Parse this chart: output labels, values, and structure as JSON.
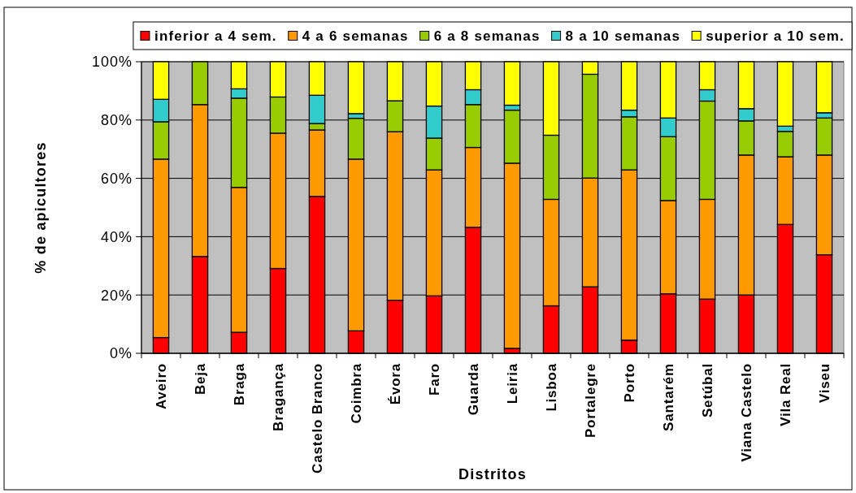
{
  "chart_data": {
    "type": "bar",
    "stacked": true,
    "xlabel": "Distritos",
    "ylabel": "% de apicultores",
    "categories": [
      "Aveiro",
      "Beja",
      "Braga",
      "Bragança",
      "Castelo Branco",
      "Coimbra",
      "Évora",
      "Faro",
      "Guarda",
      "Leiria",
      "Lisboa",
      "Portalegre",
      "Porto",
      "Santarém",
      "Setúbal",
      "Viana Castelo",
      "Vila Real",
      "Viseu"
    ],
    "series": [
      {
        "name": "inferior a 4 sem.",
        "color": "#ff0000",
        "values": [
          5.4,
          33.2,
          7.2,
          29.1,
          53.8,
          7.7,
          18.2,
          19.7,
          43.2,
          1.7,
          16.3,
          22.8,
          4.5,
          20.4,
          18.6,
          20.0,
          44.2,
          33.8
        ]
      },
      {
        "name": "4 a 6 semanas",
        "color": "#ff9900",
        "values": [
          61.2,
          52.1,
          49.7,
          46.4,
          22.8,
          58.9,
          57.8,
          43.2,
          27.4,
          63.5,
          36.5,
          37.3,
          58.4,
          32.0,
          34.2,
          48.0,
          23.2,
          34.2
        ]
      },
      {
        "name": "6 a 8 semanas",
        "color": "#99cc00",
        "values": [
          12.8,
          14.7,
          30.6,
          12.4,
          2.2,
          14.0,
          10.6,
          10.9,
          14.7,
          18.2,
          22.0,
          35.6,
          18.2,
          21.9,
          33.7,
          11.7,
          8.7,
          12.7
        ]
      },
      {
        "name": "8 a 10 semanas",
        "color": "#33cccc",
        "values": [
          7.7,
          0,
          3.2,
          0,
          9.7,
          1.6,
          0,
          11.0,
          5.1,
          1.7,
          0,
          0,
          2.3,
          6.4,
          3.9,
          4.2,
          1.8,
          1.8
        ]
      },
      {
        "name": "superior a 10 sem.",
        "color": "#ffff00",
        "values": [
          12.9,
          0,
          9.3,
          12.1,
          11.5,
          17.8,
          13.4,
          15.2,
          9.6,
          14.9,
          25.2,
          4.3,
          16.6,
          19.3,
          9.6,
          16.1,
          22.1,
          17.5
        ]
      }
    ],
    "ylim": [
      0,
      100
    ],
    "yticks": [
      {
        "value": 0,
        "label": "0%"
      },
      {
        "value": 20,
        "label": "20%"
      },
      {
        "value": 40,
        "label": "40%"
      },
      {
        "value": 60,
        "label": "60%"
      },
      {
        "value": 80,
        "label": "80%"
      },
      {
        "value": 100,
        "label": "100%"
      }
    ],
    "grid": "y",
    "legend": "top"
  }
}
